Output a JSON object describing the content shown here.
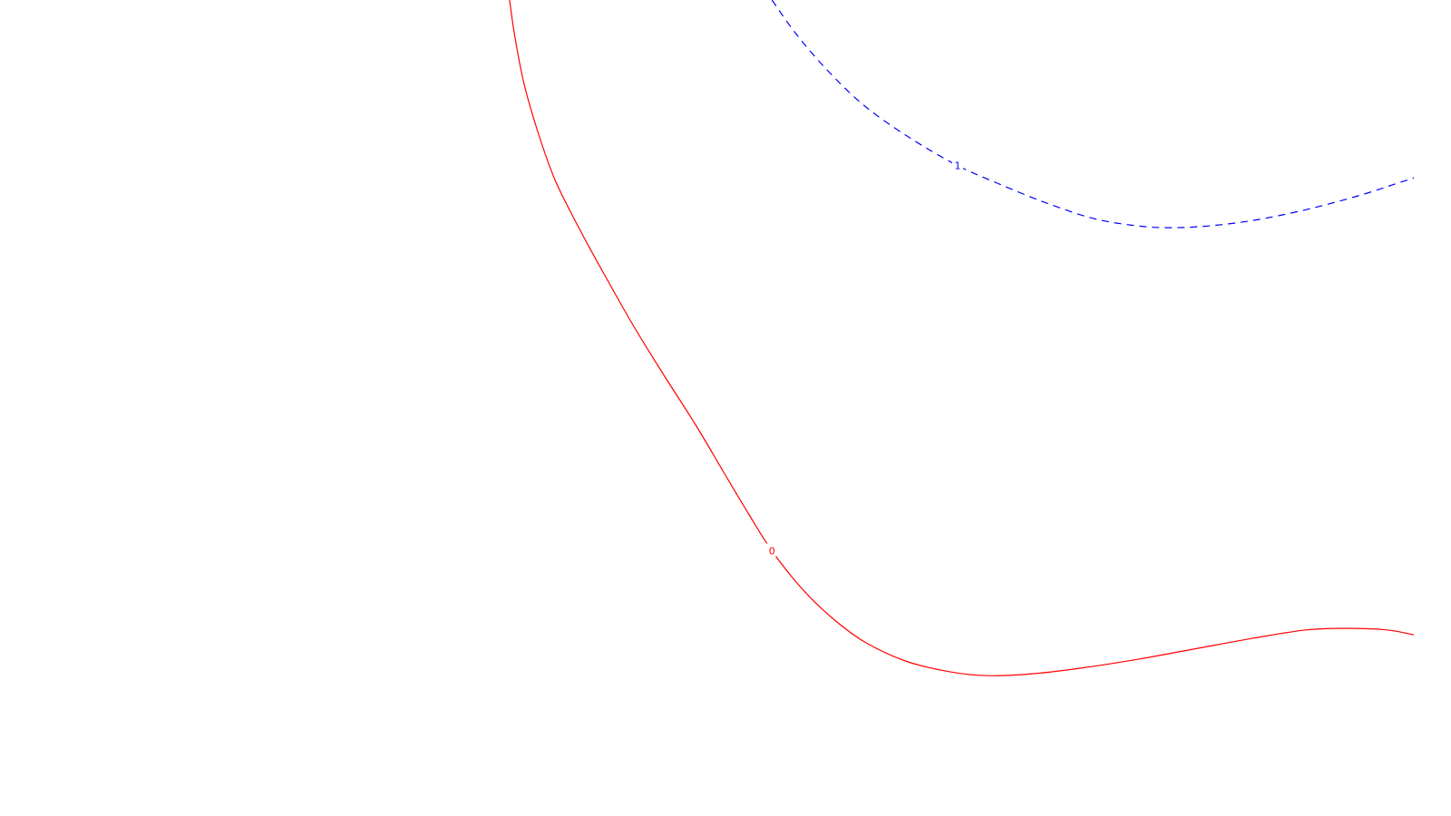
{
  "chart_data": {
    "type": "line",
    "grid": false,
    "legend": "none",
    "series": [
      {
        "label": "0",
        "color": "#ff0000",
        "style": "solid",
        "points": [
          [
            -0.061,
            1.0
          ],
          [
            -0.057,
            0.96
          ],
          [
            -0.049,
            0.9
          ],
          [
            -0.037,
            0.84
          ],
          [
            -0.022,
            0.78
          ],
          [
            -0.001,
            0.72
          ],
          [
            0.022,
            0.66
          ],
          [
            0.046,
            0.6
          ],
          [
            0.072,
            0.54
          ],
          [
            0.099,
            0.48
          ],
          [
            0.124,
            0.42
          ],
          [
            0.145,
            0.37
          ],
          [
            0.165,
            0.325
          ],
          [
            0.19,
            0.28
          ],
          [
            0.215,
            0.245
          ],
          [
            0.244,
            0.214
          ],
          [
            0.28,
            0.19
          ],
          [
            0.317,
            0.177
          ],
          [
            0.35,
            0.172
          ],
          [
            0.387,
            0.174
          ],
          [
            0.43,
            0.181
          ],
          [
            0.48,
            0.192
          ],
          [
            0.53,
            0.205
          ],
          [
            0.58,
            0.218
          ],
          [
            0.625,
            0.228
          ],
          [
            0.66,
            0.23
          ],
          [
            0.695,
            0.228
          ],
          [
            0.718,
            0.222
          ]
        ],
        "label_at": [
          0.165,
          0.325
        ]
      },
      {
        "label": "1",
        "color": "#0000ff",
        "style": "dashed",
        "points": [
          [
            0.165,
            1.0
          ],
          [
            0.185,
            0.96
          ],
          [
            0.212,
            0.915
          ],
          [
            0.245,
            0.87
          ],
          [
            0.285,
            0.83
          ],
          [
            0.325,
            0.797
          ],
          [
            0.36,
            0.775
          ],
          [
            0.4,
            0.752
          ],
          [
            0.44,
            0.733
          ],
          [
            0.475,
            0.724
          ],
          [
            0.505,
            0.721
          ],
          [
            0.54,
            0.723
          ],
          [
            0.58,
            0.73
          ],
          [
            0.625,
            0.743
          ],
          [
            0.67,
            0.76
          ],
          [
            0.705,
            0.776
          ],
          [
            0.718,
            0.782
          ]
        ],
        "label_at": [
          0.325,
          0.797
        ]
      }
    ]
  }
}
